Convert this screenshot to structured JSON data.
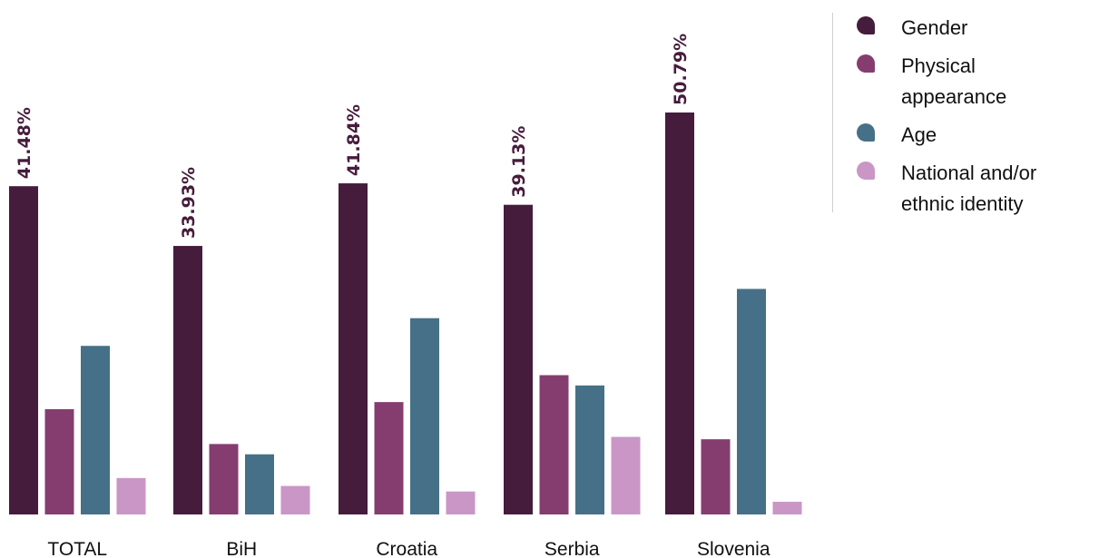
{
  "chart_data": {
    "type": "bar",
    "categories": [
      "TOTAL",
      "BiH",
      "Croatia",
      "Serbia",
      "Slovenia"
    ],
    "series": [
      {
        "name": "Gender",
        "color": "#461c3c",
        "values": [
          41.48,
          33.93,
          41.84,
          39.13,
          50.79
        ],
        "show_labels": true
      },
      {
        "name": "Physical appearance",
        "color": "#853d6f",
        "values": [
          13.3,
          8.9,
          14.2,
          17.6,
          9.5
        ],
        "show_labels": false
      },
      {
        "name": "Age",
        "color": "#467087",
        "values": [
          21.3,
          7.6,
          24.8,
          16.3,
          28.5
        ],
        "show_labels": false
      },
      {
        "name": "National and/or ethnic identity",
        "color": "#c996c6",
        "values": [
          4.6,
          3.6,
          2.9,
          9.8,
          1.6
        ],
        "show_labels": false
      }
    ],
    "value_labels": [
      "41.48%",
      "33.93%",
      "41.84%",
      "39.13%",
      "50.79%"
    ],
    "ylim": [
      0,
      60
    ],
    "grid": false,
    "legend_position": "top-right"
  },
  "legend": {
    "items": [
      {
        "label_line1": "Gender",
        "label_line2": "",
        "icon": "drop-icon",
        "color": "#461c3c"
      },
      {
        "label_line1": "Physical",
        "label_line2": "appearance",
        "icon": "drop-icon",
        "color": "#853d6f"
      },
      {
        "label_line1": "Age",
        "label_line2": "",
        "icon": "drop-icon",
        "color": "#467087"
      },
      {
        "label_line1": "National and/or",
        "label_line2": "ethnic identity",
        "icon": "drop-icon",
        "color": "#c996c6"
      }
    ]
  }
}
